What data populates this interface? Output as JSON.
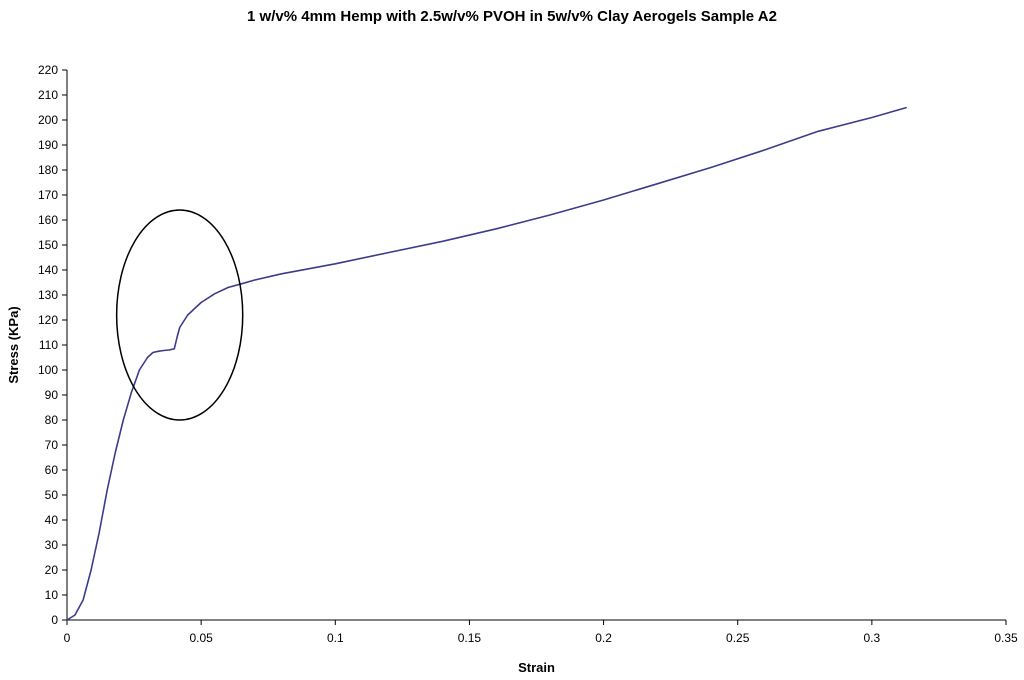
{
  "chart_data": {
    "type": "line",
    "title": "1 w/v% 4mm Hemp with 2.5w/v% PVOH in 5w/v% Clay Aerogels Sample A2",
    "xlabel": "Strain",
    "ylabel": "Stress (KPa)",
    "xlim": [
      0,
      0.35
    ],
    "ylim": [
      0,
      220
    ],
    "x_ticks": [
      "0",
      "0.05",
      "0.1",
      "0.15",
      "0.2",
      "0.25",
      "0.3",
      "0.35"
    ],
    "y_ticks": [
      "0",
      "10",
      "20",
      "30",
      "40",
      "50",
      "60",
      "70",
      "80",
      "90",
      "100",
      "110",
      "120",
      "130",
      "140",
      "150",
      "160",
      "170",
      "180",
      "190",
      "200",
      "210",
      "220"
    ],
    "grid": false,
    "legend": "none",
    "line_color": "#3c3c8c",
    "series": [
      {
        "x": [
          0,
          0.003,
          0.006,
          0.009,
          0.012,
          0.015,
          0.018,
          0.021,
          0.024,
          0.027,
          0.03,
          0.032,
          0.034,
          0.036,
          0.038,
          0.04,
          0.041,
          0.042,
          0.045,
          0.05,
          0.055,
          0.06,
          0.065,
          0.07,
          0.08,
          0.09,
          0.1,
          0.12,
          0.14,
          0.16,
          0.18,
          0.2,
          0.22,
          0.24,
          0.26,
          0.28,
          0.3,
          0.313
        ],
        "y": [
          0,
          2,
          8,
          20,
          35,
          52,
          67,
          80,
          91,
          100,
          105,
          107,
          107.5,
          107.8,
          108,
          108.5,
          113,
          117,
          122,
          127,
          130.5,
          133,
          134.5,
          136,
          138.5,
          140.5,
          142.5,
          147,
          151.5,
          156.5,
          162,
          168,
          174.5,
          181,
          188,
          195.5,
          201,
          205
        ]
      }
    ],
    "annotations": [
      {
        "type": "ellipse",
        "cx": 0.042,
        "cy": 122,
        "rx": 0.0235,
        "ry": 42,
        "color": "#000000"
      }
    ]
  }
}
